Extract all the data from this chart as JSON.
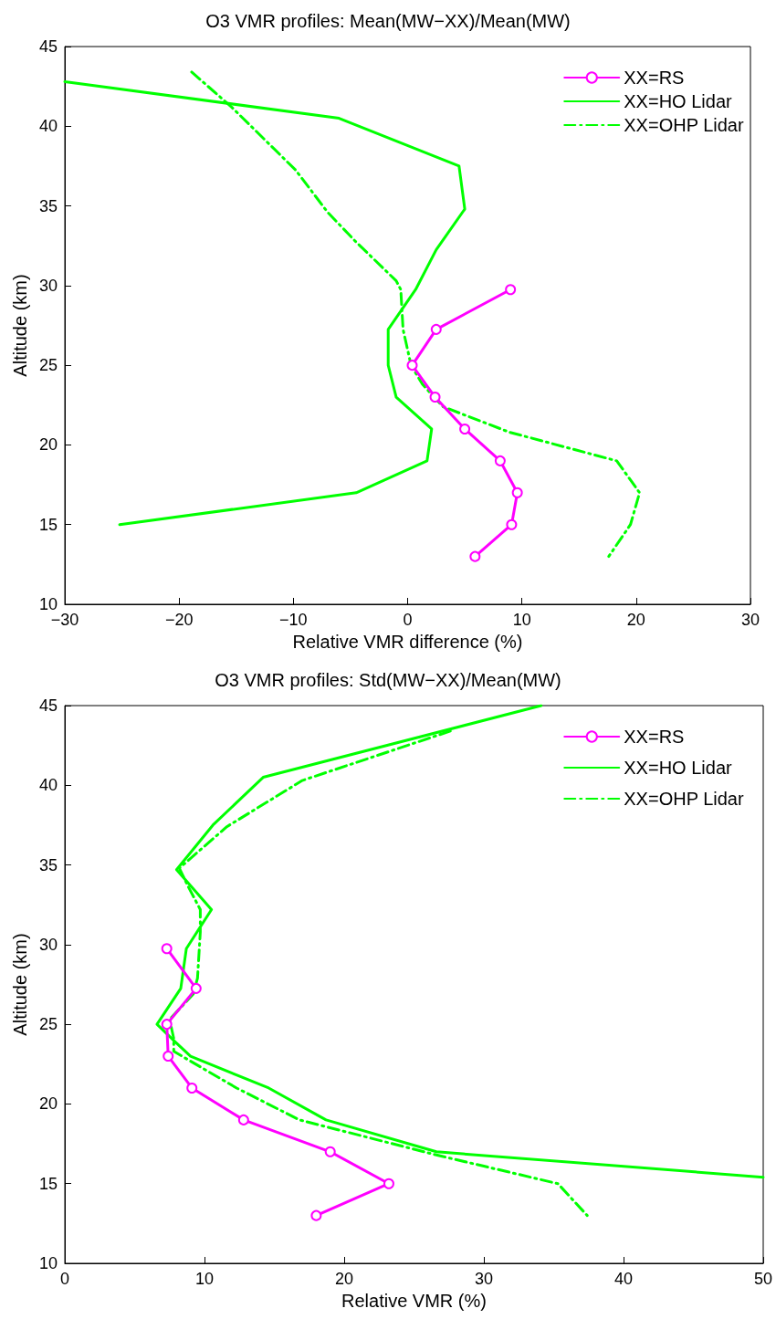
{
  "chart_data": [
    {
      "type": "line",
      "title": "O3 VMR profiles: Mean(MW−XX)/Mean(MW)",
      "xlabel": "Relative VMR difference (%)",
      "ylabel": "Altitude (km)",
      "xlim": [
        -30,
        30
      ],
      "xticks": [
        {
          "value": -30,
          "label": "−30"
        },
        {
          "value": -20,
          "label": "−20"
        },
        {
          "value": -10,
          "label": "−10"
        },
        0,
        10,
        20,
        30
      ],
      "ylim": [
        10,
        45
      ],
      "yticks": [
        10,
        15,
        20,
        25,
        30,
        35,
        40,
        45
      ],
      "grid": false,
      "legend": "top right",
      "series": [
        {
          "name": "XX=RS",
          "color": "#ff00ff",
          "marker": "circle",
          "line_style": "solid",
          "x": [
            9.0,
            2.5,
            0.4,
            2.4,
            5.0,
            8.1,
            9.6,
            9.1,
            5.9
          ],
          "values": [
            29.75,
            27.25,
            25,
            23,
            21,
            19,
            17,
            15,
            13
          ]
        },
        {
          "name": "XX=HO Lidar",
          "color": "#00ff00",
          "marker": "none",
          "line_style": "solid",
          "x": [
            -30,
            -6.0,
            4.5,
            5.0,
            2.5,
            0.7,
            -1.7,
            -1.7,
            -1.0,
            2.1,
            1.7,
            -4.5,
            -25.2
          ],
          "values": [
            42.8,
            40.5,
            37.5,
            34.8,
            32.25,
            29.75,
            27.25,
            25,
            23,
            21,
            19,
            17,
            15
          ]
        },
        {
          "name": "XX=OHP Lidar",
          "color": "#00ff00",
          "marker": "none",
          "line_style": "dashed",
          "x": [
            -18.9,
            -15.4,
            -9.8,
            -7.0,
            -4.6,
            -1.0,
            -0.6,
            -0.4,
            0.3,
            1.3,
            3.1,
            8.9,
            18.3,
            20.3,
            19.5,
            17.6
          ],
          "values": [
            43.4,
            41.2,
            37.25,
            34.6,
            32.8,
            30.3,
            29.75,
            27.25,
            25,
            23.8,
            22.4,
            20.8,
            19,
            17,
            15,
            13
          ]
        }
      ]
    },
    {
      "type": "line",
      "title": "O3 VMR profiles: Std(MW−XX)/Mean(MW)",
      "xlabel": "Relative VMR (%)",
      "ylabel": "Altitude (km)",
      "xlim": [
        0,
        50
      ],
      "xticks": [
        0,
        10,
        20,
        30,
        40,
        50
      ],
      "ylim": [
        10,
        45
      ],
      "yticks": [
        10,
        15,
        20,
        25,
        30,
        35,
        40,
        45
      ],
      "grid": false,
      "legend": "top right",
      "series": [
        {
          "name": "XX=RS",
          "color": "#ff00ff",
          "marker": "circle",
          "line_style": "solid",
          "x": [
            7.3,
            9.4,
            7.3,
            7.4,
            9.1,
            12.8,
            19.0,
            23.2,
            18.0
          ],
          "values": [
            29.75,
            27.25,
            25,
            23,
            21,
            19,
            17,
            15,
            13
          ]
        },
        {
          "name": "XX=HO Lidar",
          "color": "#00ff00",
          "marker": "none",
          "line_style": "solid",
          "x": [
            34.1,
            14.2,
            10.6,
            8.0,
            10.5,
            8.7,
            8.3,
            6.6,
            7.9,
            9.0,
            14.6,
            18.7,
            26.6,
            50
          ],
          "values": [
            45,
            40.5,
            37.5,
            34.7,
            32.2,
            29.75,
            27.25,
            25,
            23.9,
            23,
            21,
            19,
            17,
            15.4
          ]
        },
        {
          "name": "XX=OHP Lidar",
          "color": "#00ff00",
          "marker": "none",
          "line_style": "dashed",
          "x": [
            27.6,
            17.0,
            11.6,
            8.2,
            8.8,
            9.7,
            9.7,
            9.5,
            9.2,
            7.5,
            7.8,
            7.8,
            12.3,
            16.8,
            26.6,
            35.3,
            37.4
          ],
          "values": [
            43.4,
            40.3,
            37.4,
            34.8,
            33.7,
            32.2,
            30.8,
            27.9,
            26.9,
            25.3,
            24.1,
            23.3,
            21,
            19,
            16.8,
            15,
            13
          ]
        }
      ]
    }
  ]
}
